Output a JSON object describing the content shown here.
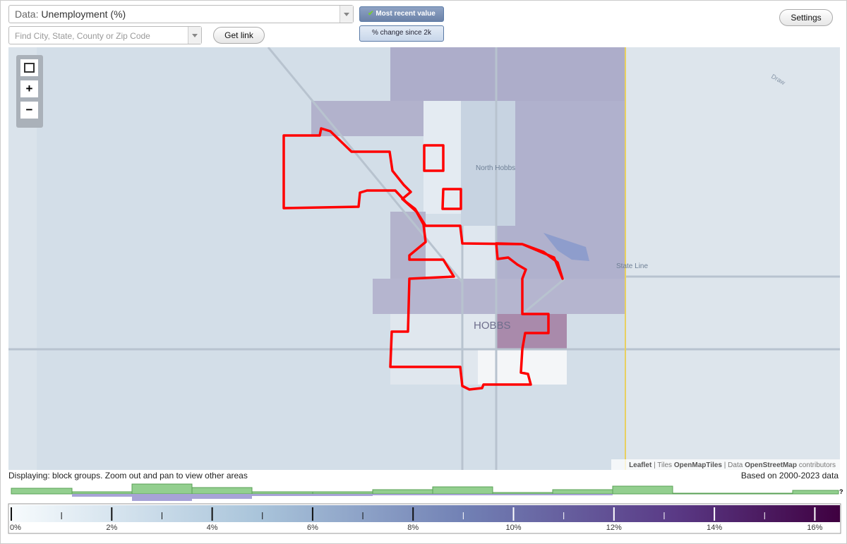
{
  "controls": {
    "data_label": "Data:",
    "data_value": "Unemployment (%)",
    "search_placeholder": "Find City, State, County or Zip Code",
    "get_link": "Get link",
    "most_recent": "Most recent value",
    "change": "% change since 2k",
    "settings": "Settings"
  },
  "map": {
    "zoom_in": "+",
    "zoom_out": "−",
    "labels": {
      "north_hobbs": "North Hobbs",
      "state_line": "State Line",
      "hobbs": "HOBBS",
      "draw": "Draw"
    },
    "attribution": {
      "leaflet": "Leaflet",
      "tiles": "Tiles",
      "tiles_source": "OpenMapTiles",
      "data": "Data",
      "data_source": "OpenStreetMap",
      "contributors": "contributors"
    }
  },
  "footer": {
    "displaying": "Displaying: block groups. Zoom out and pan to view other areas",
    "based_on": "Based on 2000-2023 data",
    "help": "?"
  },
  "legend": {
    "range": [
      0,
      16.5
    ],
    "ticks": [
      {
        "value": 0,
        "label": "0%"
      },
      {
        "value": 2,
        "label": "2%"
      },
      {
        "value": 4,
        "label": "4%"
      },
      {
        "value": 6,
        "label": "6%"
      },
      {
        "value": 8,
        "label": "8%"
      },
      {
        "value": 10,
        "label": "10%"
      },
      {
        "value": 12,
        "label": "12%"
      },
      {
        "value": 14,
        "label": "14%"
      },
      {
        "value": 16,
        "label": "16%"
      }
    ],
    "minor_ticks": [
      1,
      3,
      5,
      7,
      9,
      11,
      13,
      15
    ]
  }
}
